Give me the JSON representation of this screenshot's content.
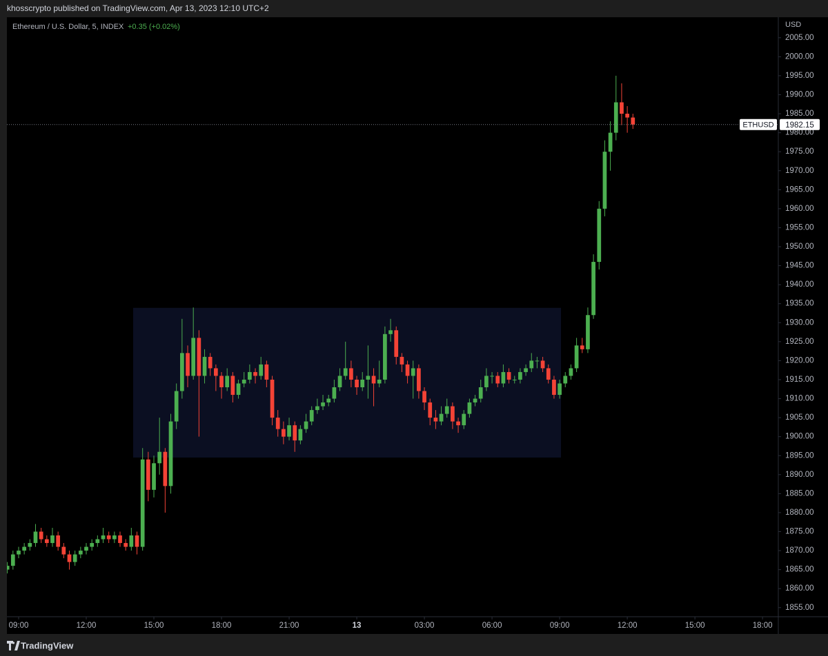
{
  "header": {
    "published": "khosscrypto published on TradingView.com, Apr 13, 2023 12:10 UTC+2"
  },
  "footer": {
    "brand": "TradingView"
  },
  "chart_data": {
    "type": "candlestick",
    "title": "Ethereum / U.S. Dollar, 5, INDEX",
    "change": "+0.35 (+0.02%)",
    "currency": "USD",
    "symbol": "ETHUSD",
    "up_color": "#4caf50",
    "down_color": "#f44336",
    "xlim": [
      8.48,
      42.7
    ],
    "ylim": [
      1852.6,
      2010.4
    ],
    "xticks": [
      {
        "value": 9,
        "label": "09:00"
      },
      {
        "value": 12,
        "label": "12:00"
      },
      {
        "value": 15,
        "label": "15:00"
      },
      {
        "value": 18,
        "label": "18:00"
      },
      {
        "value": 21,
        "label": "21:00"
      },
      {
        "value": 24,
        "label": "13"
      },
      {
        "value": 27,
        "label": "03:00"
      },
      {
        "value": 30,
        "label": "06:00"
      },
      {
        "value": 33,
        "label": "09:00"
      },
      {
        "value": 36,
        "label": "12:00"
      },
      {
        "value": 39,
        "label": "15:00"
      },
      {
        "value": 42,
        "label": "18:00"
      }
    ],
    "yticks": [
      {
        "value": 1855,
        "label": "1855.00"
      },
      {
        "value": 1860,
        "label": "1860.00"
      },
      {
        "value": 1865,
        "label": "1865.00"
      },
      {
        "value": 1870,
        "label": "1870.00"
      },
      {
        "value": 1875,
        "label": "1875.00"
      },
      {
        "value": 1880,
        "label": "1880.00"
      },
      {
        "value": 1885,
        "label": "1885.00"
      },
      {
        "value": 1890,
        "label": "1890.00"
      },
      {
        "value": 1895,
        "label": "1895.00"
      },
      {
        "value": 1900,
        "label": "1900.00"
      },
      {
        "value": 1905,
        "label": "1905.00"
      },
      {
        "value": 1910,
        "label": "1910.00"
      },
      {
        "value": 1915,
        "label": "1915.00"
      },
      {
        "value": 1920,
        "label": "1920.00"
      },
      {
        "value": 1925,
        "label": "1925.00"
      },
      {
        "value": 1930,
        "label": "1930.00"
      },
      {
        "value": 1935,
        "label": "1935.00"
      },
      {
        "value": 1940,
        "label": "1940.00"
      },
      {
        "value": 1945,
        "label": "1945.00"
      },
      {
        "value": 1950,
        "label": "1950.00"
      },
      {
        "value": 1955,
        "label": "1955.00"
      },
      {
        "value": 1960,
        "label": "1960.00"
      },
      {
        "value": 1965,
        "label": "1965.00"
      },
      {
        "value": 1970,
        "label": "1970.00"
      },
      {
        "value": 1975,
        "label": "1975.00"
      },
      {
        "value": 1980,
        "label": "1980.00"
      },
      {
        "value": 1985,
        "label": "1985.00"
      },
      {
        "value": 1990,
        "label": "1990.00"
      },
      {
        "value": 1995,
        "label": "1995.00"
      },
      {
        "value": 2000,
        "label": "2000.00"
      },
      {
        "value": 2005,
        "label": "2005.00"
      }
    ],
    "range_box": {
      "x": [
        14.08,
        33.06
      ],
      "y": [
        1894.5,
        1933.9
      ],
      "color": "#0b0f22"
    },
    "x": [
      8.5,
      8.75,
      9,
      9.25,
      9.5,
      9.75,
      10,
      10.25,
      10.5,
      10.75,
      11,
      11.25,
      11.5,
      11.75,
      12,
      12.25,
      12.5,
      12.75,
      13,
      13.25,
      13.5,
      13.75,
      14,
      14.25,
      14.5,
      14.75,
      15,
      15.25,
      15.5,
      15.75,
      16,
      16.25,
      16.5,
      16.75,
      17,
      17.25,
      17.5,
      17.75,
      18,
      18.25,
      18.5,
      18.75,
      19,
      19.25,
      19.5,
      19.75,
      20,
      20.25,
      20.5,
      20.75,
      21,
      21.25,
      21.5,
      21.75,
      22,
      22.25,
      22.5,
      22.75,
      23,
      23.25,
      23.5,
      23.75,
      24,
      24.25,
      24.5,
      24.75,
      25,
      25.25,
      25.5,
      25.75,
      26,
      26.25,
      26.5,
      26.75,
      27,
      27.25,
      27.5,
      27.75,
      28,
      28.25,
      28.5,
      28.75,
      29,
      29.25,
      29.5,
      29.75,
      30,
      30.25,
      30.5,
      30.75,
      31,
      31.25,
      31.5,
      31.75,
      32,
      32.25,
      32.5,
      32.75,
      33,
      33.25,
      33.5,
      33.75,
      34,
      34.25,
      34.5,
      34.75,
      35,
      35.25,
      35.5,
      35.75,
      36,
      36.25
    ],
    "open": [
      1865,
      1866,
      1869,
      1870,
      1871,
      1872,
      1875,
      1873,
      1872,
      1874,
      1871,
      1869,
      1867,
      1869,
      1870,
      1871,
      1872,
      1873,
      1874,
      1873,
      1874,
      1872,
      1871,
      1874,
      1871,
      1894,
      1886,
      1893,
      1896,
      1887,
      1904,
      1912,
      1922,
      1916,
      1926,
      1916,
      1921,
      1918,
      1916,
      1913,
      1916,
      1911,
      1914,
      1915,
      1917,
      1916,
      1919,
      1915,
      1905,
      1902,
      1900,
      1903,
      1899,
      1902,
      1904,
      1907,
      1908,
      1909,
      1910,
      1913,
      1916,
      1918,
      1915,
      1913,
      1915,
      1916,
      1914,
      1915,
      1927,
      1928,
      1921,
      1919,
      1916,
      1918,
      1912,
      1909,
      1905,
      1904,
      1906,
      1908,
      1904,
      1903,
      1906,
      1909,
      1910,
      1913,
      1916,
      1916,
      1914,
      1917,
      1915,
      1915,
      1917,
      1918,
      1920,
      1920,
      1918,
      1915,
      1911,
      1914,
      1916,
      1918,
      1924,
      1923,
      1932,
      1946,
      1960,
      1975,
      1980,
      1988,
      1985,
      1984
    ],
    "high": [
      1867,
      1870,
      1871,
      1872,
      1873,
      1877,
      1876,
      1874,
      1876,
      1875,
      1872,
      1870,
      1870,
      1871,
      1872,
      1873,
      1874,
      1876,
      1875,
      1875,
      1875,
      1873,
      1876,
      1875,
      1897,
      1896,
      1895,
      1905,
      1897,
      1906,
      1914,
      1931,
      1924,
      1934,
      1928,
      1923,
      1922,
      1919,
      1917,
      1918,
      1917,
      1915,
      1917,
      1919,
      1918,
      1921,
      1920,
      1916,
      1907,
      1904,
      1905,
      1904,
      1903,
      1906,
      1908,
      1910,
      1911,
      1911,
      1915,
      1918,
      1925,
      1920,
      1916,
      1917,
      1924,
      1918,
      1920,
      1929,
      1931,
      1929,
      1922,
      1920,
      1920,
      1919,
      1913,
      1910,
      1907,
      1908,
      1910,
      1909,
      1905,
      1907,
      1910,
      1911,
      1915,
      1918,
      1917,
      1917,
      1919,
      1918,
      1916,
      1918,
      1919,
      1922,
      1921,
      1921,
      1919,
      1916,
      1915,
      1917,
      1919,
      1926,
      1926,
      1934,
      1948,
      1962,
      1978,
      1983,
      1995,
      1993,
      1987,
      1985
    ],
    "low": [
      1864,
      1865,
      1868,
      1869,
      1870,
      1871,
      1872,
      1871,
      1871,
      1870,
      1868,
      1865,
      1866,
      1868,
      1869,
      1870,
      1871,
      1872,
      1872,
      1872,
      1871,
      1870,
      1870,
      1869,
      1870,
      1883,
      1884,
      1890,
      1880,
      1885,
      1902,
      1910,
      1913,
      1915,
      1900,
      1914,
      1916,
      1912,
      1910,
      1912,
      1909,
      1910,
      1913,
      1914,
      1914,
      1915,
      1913,
      1903,
      1900,
      1898,
      1899,
      1896,
      1898,
      1901,
      1903,
      1906,
      1907,
      1908,
      1909,
      1912,
      1915,
      1913,
      1911,
      1912,
      1910,
      1908,
      1913,
      1914,
      1925,
      1919,
      1917,
      1914,
      1910,
      1910,
      1907,
      1903,
      1902,
      1903,
      1905,
      1902,
      1901,
      1902,
      1905,
      1908,
      1909,
      1912,
      1914,
      1913,
      1913,
      1914,
      1914,
      1914,
      1916,
      1917,
      1918,
      1917,
      1914,
      1910,
      1910,
      1913,
      1915,
      1917,
      1922,
      1922,
      1931,
      1944,
      1958,
      1970,
      1978,
      1982,
      1980,
      1981
    ],
    "close": [
      1866,
      1869,
      1870,
      1871,
      1872,
      1875,
      1873,
      1872,
      1874,
      1871,
      1869,
      1867,
      1869,
      1870,
      1871,
      1872,
      1873,
      1874,
      1873,
      1874,
      1872,
      1871,
      1874,
      1871,
      1894,
      1886,
      1893,
      1896,
      1887,
      1904,
      1912,
      1922,
      1916,
      1926,
      1916,
      1921,
      1918,
      1916,
      1913,
      1916,
      1911,
      1914,
      1915,
      1917,
      1916,
      1919,
      1915,
      1905,
      1902,
      1900,
      1903,
      1899,
      1902,
      1904,
      1907,
      1908,
      1909,
      1910,
      1913,
      1916,
      1918,
      1915,
      1913,
      1915,
      1916,
      1914,
      1915,
      1927,
      1928,
      1921,
      1919,
      1916,
      1918,
      1912,
      1909,
      1905,
      1904,
      1906,
      1908,
      1904,
      1903,
      1906,
      1909,
      1910,
      1913,
      1916,
      1916,
      1914,
      1917,
      1915,
      1915,
      1917,
      1918,
      1920,
      1920,
      1918,
      1915,
      1911,
      1914,
      1916,
      1918,
      1924,
      1923,
      1932,
      1946,
      1960,
      1975,
      1980,
      1988,
      1985,
      1984,
      1982.15
    ]
  }
}
